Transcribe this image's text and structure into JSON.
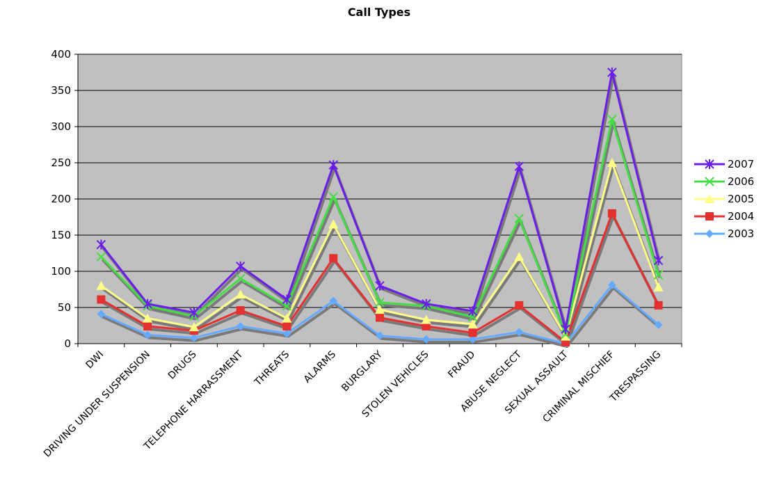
{
  "chart_data": {
    "type": "line",
    "title": "Call Types",
    "xlabel": "",
    "ylabel": "",
    "ylim": [
      0,
      400
    ],
    "yticks": [
      0,
      50,
      100,
      150,
      200,
      250,
      300,
      350,
      400
    ],
    "grid": true,
    "legend_position": "right",
    "plot_background": "#c0c0c0",
    "categories": [
      "DWI",
      "DRIVING UNDER SUSPENSION",
      "DRUGS",
      "TELEPHONE HARRASSMENT",
      "THREATS",
      "ALARMS",
      "BURGLARY",
      "STOLEN VEHICLES",
      "FRAUD",
      "ABUSE NEGLECT",
      "SEXUAL ASSAULT",
      "CRIMINAL MISCHIEF",
      "TRESPASSING"
    ],
    "series": [
      {
        "name": "2007",
        "color": "#6a1ee8",
        "marker": "star",
        "values": [
          137,
          55,
          43,
          107,
          61,
          247,
          80,
          55,
          45,
          245,
          20,
          375,
          115
        ]
      },
      {
        "name": "2006",
        "color": "#44dd44",
        "marker": "x",
        "values": [
          120,
          52,
          38,
          90,
          52,
          203,
          57,
          52,
          37,
          173,
          13,
          310,
          95
        ]
      },
      {
        "name": "2005",
        "color": "#ffff88",
        "marker": "triangle",
        "values": [
          80,
          35,
          23,
          68,
          35,
          165,
          47,
          33,
          27,
          120,
          10,
          250,
          78
        ]
      },
      {
        "name": "2004",
        "color": "#e53030",
        "marker": "square",
        "values": [
          61,
          24,
          18,
          46,
          24,
          118,
          36,
          24,
          15,
          53,
          2,
          180,
          53
        ]
      },
      {
        "name": "2003",
        "color": "#66aaff",
        "marker": "diamond",
        "values": [
          41,
          12,
          8,
          24,
          14,
          59,
          11,
          6,
          6,
          16,
          0,
          81,
          26
        ]
      }
    ]
  }
}
